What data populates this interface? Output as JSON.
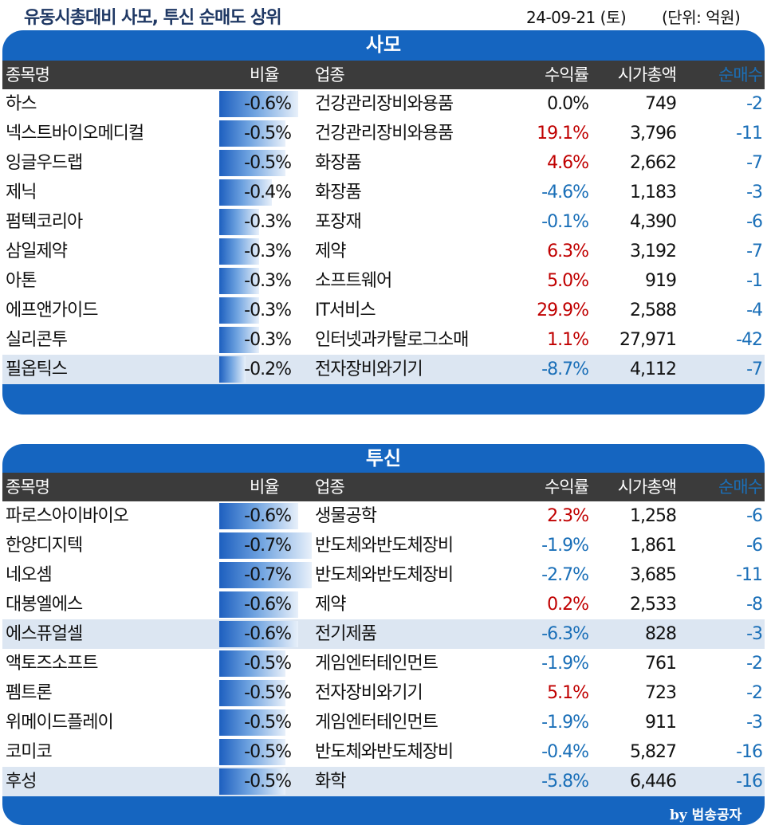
{
  "header": {
    "title": "유동시총대비 사모, 투신 순매도 상위",
    "date": "24-09-21 (토)",
    "unit": "(단위: 억원)"
  },
  "columns": [
    "종목명",
    "비율",
    "업종",
    "수익률",
    "시가총액",
    "순매수"
  ],
  "sections": [
    {
      "title": "사모",
      "rows": [
        {
          "name": "하스",
          "ratio": "-0.6%",
          "ratio_value": 0.6,
          "industry": "건강관리장비와용품",
          "ret": "0.0%",
          "sign": "zero",
          "cap": "749",
          "net": "-2",
          "hl": false
        },
        {
          "name": "넥스트바이오메디컬",
          "ratio": "-0.5%",
          "ratio_value": 0.5,
          "industry": "건강관리장비와용품",
          "ret": "19.1%",
          "sign": "pos",
          "cap": "3,796",
          "net": "-11",
          "hl": false
        },
        {
          "name": "잉글우드랩",
          "ratio": "-0.5%",
          "ratio_value": 0.5,
          "industry": "화장품",
          "ret": "4.6%",
          "sign": "pos",
          "cap": "2,662",
          "net": "-7",
          "hl": false
        },
        {
          "name": "제닉",
          "ratio": "-0.4%",
          "ratio_value": 0.4,
          "industry": "화장품",
          "ret": "-4.6%",
          "sign": "neg",
          "cap": "1,183",
          "net": "-3",
          "hl": false
        },
        {
          "name": "펌텍코리아",
          "ratio": "-0.3%",
          "ratio_value": 0.3,
          "industry": "포장재",
          "ret": "-0.1%",
          "sign": "neg",
          "cap": "4,390",
          "net": "-6",
          "hl": false
        },
        {
          "name": "삼일제약",
          "ratio": "-0.3%",
          "ratio_value": 0.3,
          "industry": "제약",
          "ret": "6.3%",
          "sign": "pos",
          "cap": "3,192",
          "net": "-7",
          "hl": false
        },
        {
          "name": "아톤",
          "ratio": "-0.3%",
          "ratio_value": 0.3,
          "industry": "소프트웨어",
          "ret": "5.0%",
          "sign": "pos",
          "cap": "919",
          "net": "-1",
          "hl": false
        },
        {
          "name": "에프앤가이드",
          "ratio": "-0.3%",
          "ratio_value": 0.3,
          "industry": "IT서비스",
          "ret": "29.9%",
          "sign": "pos",
          "cap": "2,588",
          "net": "-4",
          "hl": false
        },
        {
          "name": "실리콘투",
          "ratio": "-0.3%",
          "ratio_value": 0.3,
          "industry": "인터넷과카탈로그소매",
          "ret": "1.1%",
          "sign": "pos",
          "cap": "27,971",
          "net": "-42",
          "hl": false
        },
        {
          "name": "필옵틱스",
          "ratio": "-0.2%",
          "ratio_value": 0.2,
          "industry": "전자장비와기기",
          "ret": "-8.7%",
          "sign": "neg",
          "cap": "4,112",
          "net": "-7",
          "hl": true
        }
      ]
    },
    {
      "title": "투신",
      "rows": [
        {
          "name": "파로스아이바이오",
          "ratio": "-0.6%",
          "ratio_value": 0.6,
          "industry": "생물공학",
          "ret": "2.3%",
          "sign": "pos",
          "cap": "1,258",
          "net": "-6",
          "hl": false
        },
        {
          "name": "한양디지텍",
          "ratio": "-0.7%",
          "ratio_value": 0.7,
          "industry": "반도체와반도체장비",
          "ret": "-1.9%",
          "sign": "neg",
          "cap": "1,861",
          "net": "-6",
          "hl": false
        },
        {
          "name": "네오셈",
          "ratio": "-0.7%",
          "ratio_value": 0.7,
          "industry": "반도체와반도체장비",
          "ret": "-2.7%",
          "sign": "neg",
          "cap": "3,685",
          "net": "-11",
          "hl": false
        },
        {
          "name": "대봉엘에스",
          "ratio": "-0.6%",
          "ratio_value": 0.6,
          "industry": "제약",
          "ret": "0.2%",
          "sign": "pos",
          "cap": "2,533",
          "net": "-8",
          "hl": false
        },
        {
          "name": "에스퓨얼셀",
          "ratio": "-0.6%",
          "ratio_value": 0.6,
          "industry": "전기제품",
          "ret": "-6.3%",
          "sign": "neg",
          "cap": "828",
          "net": "-3",
          "hl": true
        },
        {
          "name": "액토즈소프트",
          "ratio": "-0.5%",
          "ratio_value": 0.5,
          "industry": "게임엔터테인먼트",
          "ret": "-1.9%",
          "sign": "neg",
          "cap": "761",
          "net": "-2",
          "hl": false
        },
        {
          "name": "펨트론",
          "ratio": "-0.5%",
          "ratio_value": 0.5,
          "industry": "전자장비와기기",
          "ret": "5.1%",
          "sign": "pos",
          "cap": "723",
          "net": "-2",
          "hl": false
        },
        {
          "name": "위메이드플레이",
          "ratio": "-0.5%",
          "ratio_value": 0.5,
          "industry": "게임엔터테인먼트",
          "ret": "-1.9%",
          "sign": "neg",
          "cap": "911",
          "net": "-3",
          "hl": false
        },
        {
          "name": "코미코",
          "ratio": "-0.5%",
          "ratio_value": 0.5,
          "industry": "반도체와반도체장비",
          "ret": "-0.4%",
          "sign": "neg",
          "cap": "5,827",
          "net": "-16",
          "hl": false
        },
        {
          "name": "후성",
          "ratio": "-0.5%",
          "ratio_value": 0.5,
          "industry": "화학",
          "ret": "-5.8%",
          "sign": "neg",
          "cap": "6,446",
          "net": "-16",
          "hl": true
        }
      ]
    }
  ],
  "footer": {
    "byline": "by 범송공자"
  },
  "colors": {
    "panel": "#1565c0",
    "header_row": "#3b3b3b",
    "highlight": "#dce6f2",
    "positive": "#c00000",
    "negative": "#1a6fb8"
  }
}
